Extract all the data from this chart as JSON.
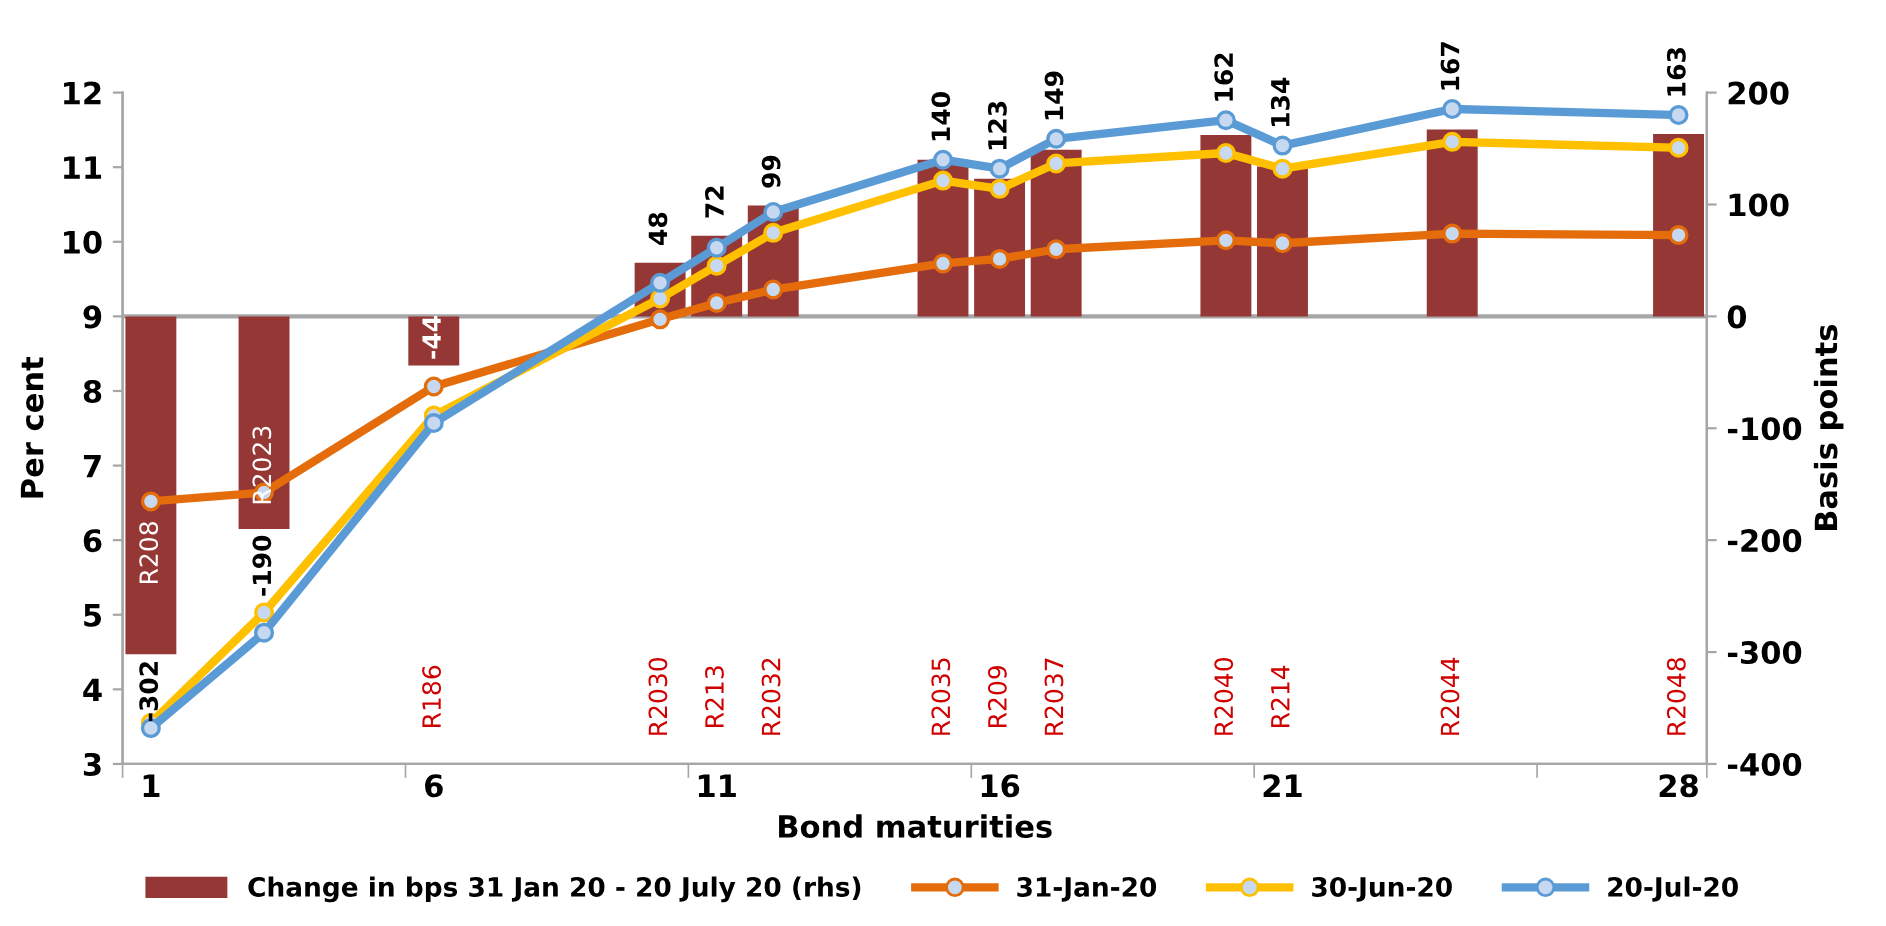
{
  "chart_data": {
    "type": "line",
    "xlabel": "Bond maturities",
    "ylabel": "Per cent",
    "y2label": "Basis points",
    "categories": [
      "1",
      null,
      null,
      null,
      null,
      "6",
      null,
      null,
      null,
      null,
      "11",
      null,
      null,
      null,
      null,
      "16",
      null,
      null,
      null,
      null,
      "21",
      null,
      null,
      null,
      null,
      null,
      null,
      "28"
    ],
    "series": [
      {
        "name": "Change in bps 31 Jan 20 - 20 July 20 (rhs)",
        "type": "bar",
        "axis": "y2",
        "color": "#953735",
        "values": [
          -302,
          null,
          -190,
          null,
          null,
          -44,
          null,
          null,
          null,
          48,
          72,
          99,
          null,
          null,
          140,
          123,
          149,
          null,
          null,
          162,
          134,
          null,
          null,
          167,
          null,
          null,
          null,
          163
        ],
        "value_labels": [
          "-302",
          null,
          "-190",
          null,
          null,
          "-44",
          null,
          null,
          null,
          "48",
          "72",
          "99",
          null,
          null,
          "140",
          "123",
          "149",
          null,
          null,
          "162",
          "134",
          null,
          null,
          "167",
          null,
          null,
          null,
          "163"
        ]
      },
      {
        "name": "31-Jan-20",
        "color": "#e46c0a",
        "values": [
          6.52,
          null,
          6.64,
          null,
          null,
          8.06,
          null,
          null,
          null,
          8.96,
          9.18,
          9.36,
          null,
          null,
          9.71,
          9.77,
          9.9,
          null,
          null,
          10.02,
          9.98,
          null,
          null,
          10.11,
          null,
          null,
          null,
          10.09
        ]
      },
      {
        "name": "30-Jun-20",
        "color": "#ffc000",
        "values": [
          3.55,
          null,
          5.03,
          null,
          null,
          7.67,
          null,
          null,
          null,
          9.24,
          9.68,
          10.12,
          null,
          null,
          10.82,
          10.71,
          11.05,
          null,
          null,
          11.19,
          10.98,
          null,
          null,
          11.34,
          null,
          null,
          null,
          11.26
        ]
      },
      {
        "name": "20-Jul-20",
        "color": "#5b9bd5",
        "values": [
          3.48,
          null,
          4.76,
          null,
          null,
          7.57,
          null,
          null,
          null,
          9.45,
          9.92,
          10.4,
          null,
          null,
          11.1,
          10.98,
          11.38,
          null,
          null,
          11.63,
          11.29,
          null,
          null,
          11.78,
          null,
          null,
          null,
          11.7
        ]
      }
    ],
    "ylim": [
      3,
      12
    ],
    "yticks": [
      3,
      4,
      5,
      6,
      7,
      8,
      9,
      10,
      11,
      12
    ],
    "y2lim": [
      -400,
      200
    ],
    "y2ticks": [
      -400,
      -300,
      -200,
      -100,
      0,
      100,
      200
    ],
    "ref_lines": [
      {
        "axis": "y2",
        "value": 0,
        "color": "#a6a6a6"
      }
    ],
    "annotations": [
      "R208",
      "R2023",
      "R186",
      "R2030",
      "R213",
      "R2032",
      "R2035",
      "R209",
      "R2037",
      "R2040",
      "R214",
      "R2044",
      "R2048"
    ],
    "marker": "circle",
    "line_style": "solid",
    "grid": false,
    "legend": "bottom"
  }
}
